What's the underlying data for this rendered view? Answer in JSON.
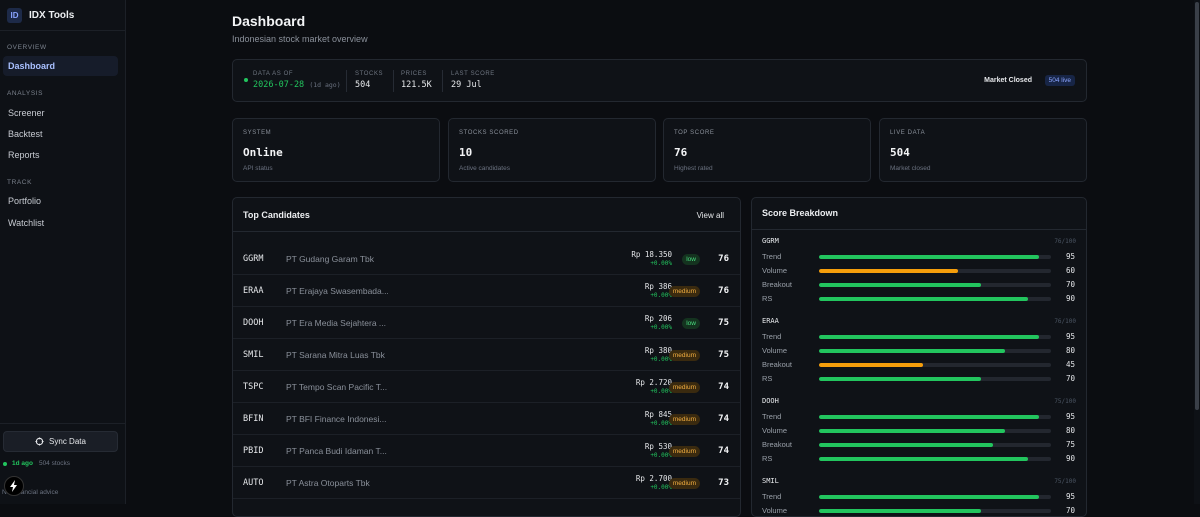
{
  "sidebar": {
    "brand_logo": "ID",
    "brand_name": "IDX Tools",
    "sections": [
      {
        "label": "OVERVIEW",
        "items": [
          {
            "label": "Dashboard",
            "active": true
          }
        ]
      },
      {
        "label": "ANALYSIS",
        "items": [
          {
            "label": "Screener"
          },
          {
            "label": "Backtest"
          },
          {
            "label": "Reports"
          }
        ]
      },
      {
        "label": "TRACK",
        "items": [
          {
            "label": "Portfolio"
          },
          {
            "label": "Watchlist"
          }
        ]
      }
    ],
    "sync_button": "Sync Data",
    "sync_ago": "1d ago",
    "sync_count": "504 stocks",
    "disclaimer": "Not financial advice"
  },
  "header": {
    "title": "Dashboard",
    "subtitle": "Indonesian stock market overview"
  },
  "status_bar": {
    "data_as_of_label": "DATA AS OF",
    "data_as_of": "2026-07-28",
    "data_ago": "(1d ago)",
    "stocks_label": "STOCKS",
    "stocks": "504",
    "prices_label": "PRICES",
    "prices": "121.5K",
    "last_score_label": "LAST SCORE",
    "last_score": "29 Jul",
    "market_status": "Market Closed",
    "live_badge": "504 live"
  },
  "stats": [
    {
      "label": "SYSTEM",
      "value": "Online",
      "sub": "API status"
    },
    {
      "label": "STOCKS SCORED",
      "value": "10",
      "sub": "Active candidates"
    },
    {
      "label": "TOP SCORE",
      "value": "76",
      "sub": "Highest rated"
    },
    {
      "label": "LIVE DATA",
      "value": "504",
      "sub": "Market closed"
    }
  ],
  "candidates": {
    "title": "Top Candidates",
    "view_all": "View all",
    "rows": [
      {
        "ticker": "GGRM",
        "name": "PT Gudang Garam Tbk",
        "price": "Rp 18.350",
        "change": "+0.00%",
        "risk": "low",
        "score": "76"
      },
      {
        "ticker": "ERAA",
        "name": "PT Erajaya Swasembada...",
        "price": "Rp 386",
        "change": "+0.00%",
        "risk": "medium",
        "score": "76"
      },
      {
        "ticker": "DOOH",
        "name": "PT Era Media Sejahtera ...",
        "price": "Rp 206",
        "change": "+0.00%",
        "risk": "low",
        "score": "75"
      },
      {
        "ticker": "SMIL",
        "name": "PT Sarana Mitra Luas Tbk",
        "price": "Rp 380",
        "change": "+0.00%",
        "risk": "medium",
        "score": "75"
      },
      {
        "ticker": "TSPC",
        "name": "PT Tempo Scan Pacific T...",
        "price": "Rp 2.720",
        "change": "+0.00%",
        "risk": "medium",
        "score": "74"
      },
      {
        "ticker": "BFIN",
        "name": "PT BFI Finance Indonesi...",
        "price": "Rp 845",
        "change": "+0.00%",
        "risk": "medium",
        "score": "74"
      },
      {
        "ticker": "PBID",
        "name": "PT Panca Budi Idaman T...",
        "price": "Rp 530",
        "change": "+0.00%",
        "risk": "medium",
        "score": "74"
      },
      {
        "ticker": "AUTO",
        "name": "PT Astra Otoparts Tbk",
        "price": "Rp 2.700",
        "change": "+0.00%",
        "risk": "medium",
        "score": "73"
      }
    ]
  },
  "breakdown": {
    "title": "Score Breakdown",
    "colors": {
      "strong": "#22c55e",
      "weak": "#f59e0b"
    },
    "items": [
      {
        "ticker": "GGRM",
        "total": "76/100",
        "metrics": [
          {
            "label": "Trend",
            "value": 95
          },
          {
            "label": "Volume",
            "value": 60
          },
          {
            "label": "Breakout",
            "value": 70
          },
          {
            "label": "RS",
            "value": 90
          }
        ]
      },
      {
        "ticker": "ERAA",
        "total": "76/100",
        "metrics": [
          {
            "label": "Trend",
            "value": 95
          },
          {
            "label": "Volume",
            "value": 80
          },
          {
            "label": "Breakout",
            "value": 45
          },
          {
            "label": "RS",
            "value": 70
          }
        ]
      },
      {
        "ticker": "DOOH",
        "total": "75/100",
        "metrics": [
          {
            "label": "Trend",
            "value": 95
          },
          {
            "label": "Volume",
            "value": 80
          },
          {
            "label": "Breakout",
            "value": 75
          },
          {
            "label": "RS",
            "value": 90
          }
        ]
      },
      {
        "ticker": "SMIL",
        "total": "75/100",
        "metrics": [
          {
            "label": "Trend",
            "value": 95
          },
          {
            "label": "Volume",
            "value": 70
          }
        ]
      }
    ]
  }
}
